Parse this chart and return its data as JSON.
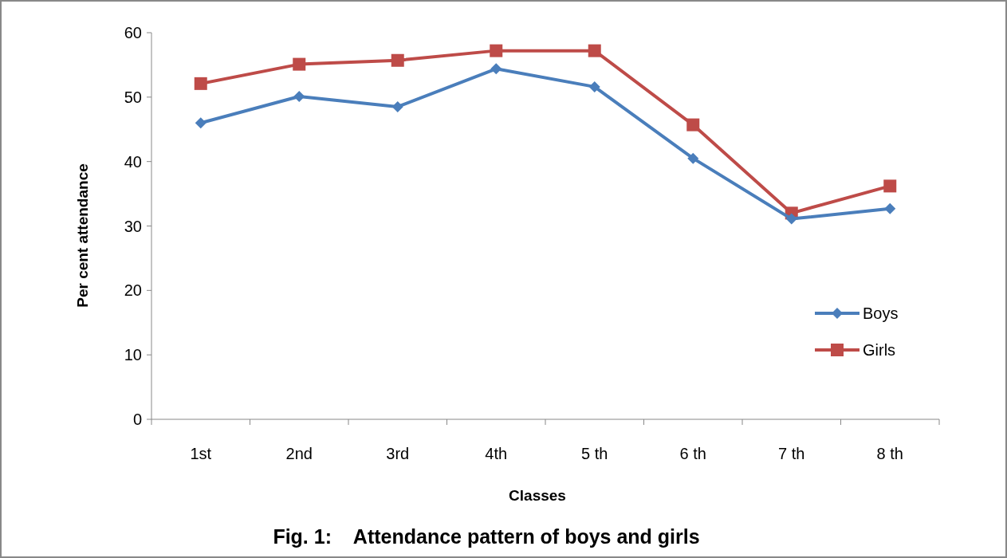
{
  "chart_data": {
    "type": "line",
    "title": "Fig. 1:    Attendance pattern of boys and girls",
    "xlabel": "Classes",
    "ylabel": "Per cent attendance",
    "categories": [
      "1st",
      "2nd",
      "3rd",
      "4th",
      "5 th",
      "6 th",
      "7 th",
      "8 th"
    ],
    "series": [
      {
        "name": "Boys",
        "color": "#4a7ebb",
        "marker": "diamond",
        "values": [
          46.0,
          50.1,
          48.5,
          54.4,
          51.6,
          40.5,
          31.1,
          32.7
        ]
      },
      {
        "name": "Girls",
        "color": "#be4b48",
        "marker": "square",
        "values": [
          52.1,
          55.1,
          55.7,
          57.2,
          57.2,
          45.7,
          32.0,
          36.2
        ]
      }
    ],
    "ylim": [
      0,
      60
    ],
    "yticks": [
      0,
      10,
      20,
      30,
      40,
      50,
      60
    ],
    "legend": "right",
    "grid": false,
    "line_style": "solid"
  }
}
